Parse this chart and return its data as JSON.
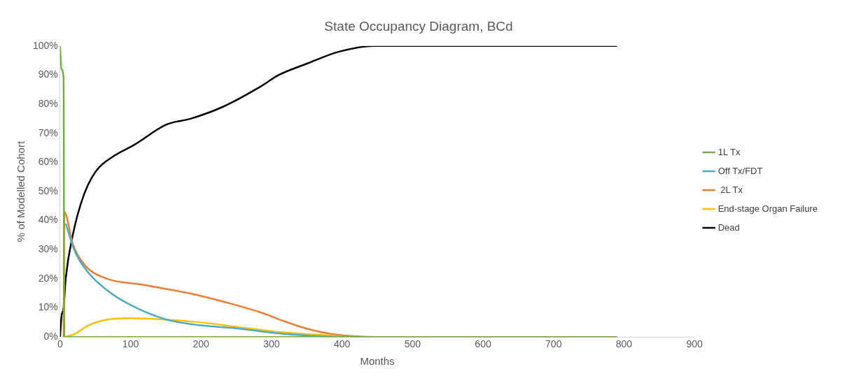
{
  "chart_data": {
    "type": "line",
    "title": "State Occupancy Diagram, BCd",
    "xlabel": "Months",
    "ylabel": "% of Modelled Cohort",
    "xlim": [
      0,
      900
    ],
    "xticks": [
      0,
      100,
      200,
      300,
      400,
      500,
      600,
      700,
      800,
      900
    ],
    "ylim": [
      0,
      100
    ],
    "yticks": [
      {
        "value": 0,
        "label": "0%"
      },
      {
        "value": 10,
        "label": "10%"
      },
      {
        "value": 20,
        "label": "20%"
      },
      {
        "value": 30,
        "label": "30%"
      },
      {
        "value": 40,
        "label": "40%"
      },
      {
        "value": 50,
        "label": "50%"
      },
      {
        "value": 60,
        "label": "60%"
      },
      {
        "value": 70,
        "label": "70%"
      },
      {
        "value": 80,
        "label": "80%"
      },
      {
        "value": 90,
        "label": "90%"
      },
      {
        "value": 100,
        "label": "100%"
      }
    ],
    "grid": false,
    "legend": "right",
    "marker": "none",
    "line_style": "solid",
    "series": [
      {
        "name": "1L Tx",
        "color": "#70ad47",
        "x": [
          0,
          2,
          5,
          6,
          790
        ],
        "values": [
          100,
          92,
          89,
          0,
          0
        ]
      },
      {
        "name": "Off Tx/FDT",
        "color": "#4bacc6",
        "x": [
          8,
          20,
          34,
          67,
          100,
          151,
          200,
          250,
          300,
          350,
          400,
          790
        ],
        "values": [
          39,
          30,
          24,
          16,
          11,
          6,
          4,
          3,
          1.5,
          0.5,
          0,
          0
        ]
      },
      {
        "name": " 2L Tx",
        "color": "#ed7d31",
        "x": [
          5,
          6,
          18,
          34,
          67,
          117,
          151,
          184,
          234,
          284,
          317,
          351,
          384,
          450,
          790
        ],
        "values": [
          0,
          43,
          32,
          25,
          20,
          18,
          16.5,
          15,
          12,
          8.5,
          5.5,
          2.8,
          1.1,
          0,
          0
        ]
      },
      {
        "name": "End-stage Organ Failure",
        "color": "#ffc000",
        "x": [
          5,
          20,
          40,
          67,
          100,
          150,
          200,
          250,
          300,
          350,
          400,
          450,
          790
        ],
        "values": [
          0,
          1,
          4,
          6,
          6.5,
          6,
          5,
          3.5,
          2,
          1,
          0.3,
          0,
          0
        ]
      },
      {
        "name": "Dead",
        "color": "#000000",
        "x": [
          0,
          2,
          5,
          8,
          18,
          34,
          51,
          75,
          105,
          151,
          185,
          230,
          284,
          310,
          351,
          395,
          445,
          790
        ],
        "values": [
          0,
          7,
          10,
          20,
          35,
          49,
          57,
          62,
          66,
          73,
          75,
          79,
          86,
          90,
          94,
          98,
          100,
          100
        ]
      }
    ]
  }
}
